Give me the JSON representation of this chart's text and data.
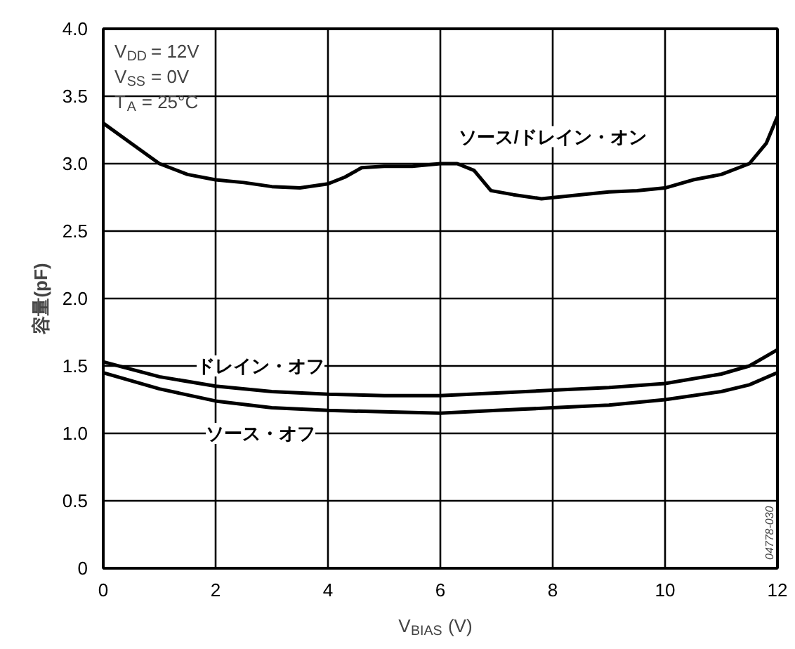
{
  "chart_data": {
    "type": "line",
    "xlabel": "V$_{BIAS}$(V)",
    "ylabel": "容量(pF)",
    "xlim": [
      0,
      12
    ],
    "ylim": [
      0,
      4
    ],
    "xticks": [
      0,
      2,
      4,
      6,
      8,
      10,
      12
    ],
    "yticks": [
      0,
      {
        "value": 0.5,
        "label": "0.5"
      },
      {
        "value": 1,
        "label": "1.0"
      },
      {
        "value": 1.5,
        "label": "1.5"
      },
      {
        "value": 2,
        "label": "2.0"
      },
      {
        "value": 2.5,
        "label": "2.5"
      },
      {
        "value": 3,
        "label": "3.0"
      },
      {
        "value": 3.5,
        "label": "3.5"
      },
      {
        "value": 4,
        "label": "4.0"
      }
    ],
    "grid": true,
    "line_style": "solid",
    "marker": "none",
    "series": [
      {
        "name": "ソース/ドレイン・オン",
        "color": "#000000",
        "x": [
          0,
          0.5,
          1,
          1.5,
          2,
          2.5,
          3,
          3.5,
          4,
          4.3,
          4.6,
          5,
          5.5,
          6,
          6.3,
          6.6,
          6.9,
          7.3,
          7.8,
          8.5,
          9,
          9.5,
          10,
          10.5,
          11,
          11.5,
          11.8,
          12
        ],
        "values": [
          3.3,
          3.15,
          3.0,
          2.92,
          2.88,
          2.86,
          2.83,
          2.82,
          2.85,
          2.9,
          2.97,
          2.98,
          2.98,
          3.0,
          3.0,
          2.95,
          2.8,
          2.77,
          2.74,
          2.77,
          2.79,
          2.8,
          2.82,
          2.88,
          2.92,
          3.0,
          3.15,
          3.35
        ]
      },
      {
        "name": "ドレイン・オフ",
        "color": "#000000",
        "x": [
          0,
          1,
          2,
          3,
          4,
          5,
          6,
          7,
          8,
          9,
          10,
          11,
          11.5,
          12
        ],
        "values": [
          1.53,
          1.42,
          1.35,
          1.31,
          1.29,
          1.28,
          1.28,
          1.3,
          1.32,
          1.34,
          1.37,
          1.44,
          1.5,
          1.62
        ]
      },
      {
        "name": "ソース・オフ",
        "color": "#000000",
        "x": [
          0,
          1,
          2,
          3,
          4,
          5,
          6,
          7,
          8,
          9,
          10,
          11,
          11.5,
          12
        ],
        "values": [
          1.45,
          1.33,
          1.24,
          1.19,
          1.17,
          1.16,
          1.15,
          1.17,
          1.19,
          1.21,
          1.25,
          1.31,
          1.36,
          1.45
        ]
      }
    ],
    "annotations": [
      "V$_{DD}$ = 12V",
      "V$_{SS}$ = 0V",
      "T$_{A}$ = 25°C",
      "04778-030"
    ]
  }
}
